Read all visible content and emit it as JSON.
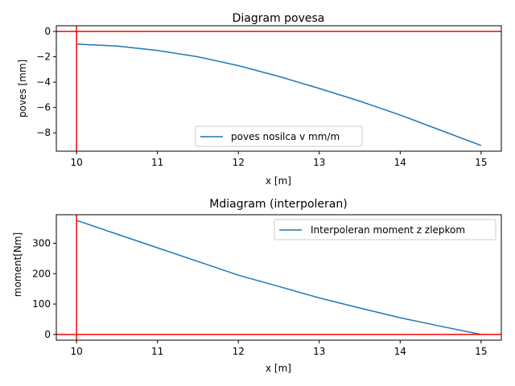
{
  "chart_data": [
    {
      "type": "line",
      "title": "Diagram povesa",
      "xlabel": "x [m]",
      "ylabel": "poves [mm]",
      "xlim": [
        9.75,
        15.25
      ],
      "ylim": [
        -9.45,
        0.45
      ],
      "xticks": [
        10,
        11,
        12,
        13,
        14,
        15
      ],
      "yticks": [
        -8,
        -6,
        -4,
        -2,
        0
      ],
      "ytick_labels": [
        "−8",
        "−6",
        "−4",
        "−2",
        "0"
      ],
      "legend_position": "lower-center",
      "grid": false,
      "series": [
        {
          "name": "poves nosilca v mm/m",
          "color": "#1f77b4",
          "x": [
            10,
            10.5,
            11,
            11.5,
            12,
            12.5,
            13,
            13.5,
            14,
            14.5,
            15
          ],
          "y": [
            -1.0,
            -1.15,
            -1.5,
            -2.0,
            -2.7,
            -3.55,
            -4.5,
            -5.5,
            -6.6,
            -7.8,
            -9.0
          ]
        }
      ],
      "reference_lines": [
        {
          "orientation": "vertical",
          "value": 10,
          "color": "#ff0000"
        },
        {
          "orientation": "horizontal",
          "value": 0,
          "color": "#ff0000"
        }
      ]
    },
    {
      "type": "line",
      "title": "Mdiagram (interpoleran)",
      "xlabel": "x [m]",
      "ylabel": "moment[Nm]",
      "xlim": [
        9.75,
        15.25
      ],
      "ylim": [
        -18.75,
        393.75
      ],
      "xticks": [
        10,
        11,
        12,
        13,
        14,
        15
      ],
      "yticks": [
        0,
        100,
        200,
        300
      ],
      "ytick_labels": [
        "0",
        "100",
        "200",
        "300"
      ],
      "legend_position": "upper-right",
      "grid": false,
      "series": [
        {
          "name": "Interpoleran moment z zlepkom",
          "color": "#1f77b4",
          "x": [
            10,
            10.5,
            11,
            11.5,
            12,
            12.5,
            13,
            13.5,
            14,
            14.5,
            15
          ],
          "y": [
            375,
            330,
            285,
            240,
            195,
            158,
            120,
            87,
            55,
            27,
            0
          ]
        }
      ],
      "reference_lines": [
        {
          "orientation": "vertical",
          "value": 10,
          "color": "#ff0000"
        },
        {
          "orientation": "horizontal",
          "value": 0,
          "color": "#ff0000"
        }
      ]
    }
  ]
}
